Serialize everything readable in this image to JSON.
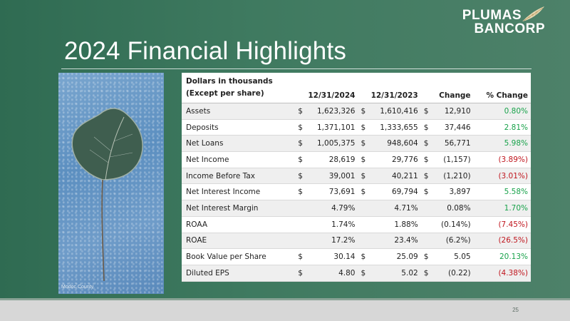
{
  "slide": {
    "title": "2024 Financial Highlights",
    "page_number": "25"
  },
  "logo": {
    "line1": "PLUMAS",
    "line2": "BANCORP"
  },
  "photo": {
    "caption": "Modoc County"
  },
  "colors": {
    "positive": "#18a24a",
    "negative": "#c0161e",
    "background": "#3f7a60"
  },
  "table": {
    "header": {
      "label_line1": "Dollars in thousands",
      "label_line2": "(Except per share)",
      "col1": "12/31/2024",
      "col2": "12/31/2023",
      "col3": "Change",
      "col4": "% Change"
    },
    "rows": [
      {
        "label": "Assets",
        "cur1": "$",
        "v2024": "1,623,326",
        "cur2": "$",
        "v2023": "1,610,416",
        "cur3": "$",
        "change": "12,910",
        "pct": "0.80%"
      },
      {
        "label": "Deposits",
        "cur1": "$",
        "v2024": "1,371,101",
        "cur2": "$",
        "v2023": "1,333,655",
        "cur3": "$",
        "change": "37,446",
        "pct": "2.81%"
      },
      {
        "label": "Net Loans",
        "cur1": "$",
        "v2024": "1,005,375",
        "cur2": "$",
        "v2023": "948,604",
        "cur3": "$",
        "change": "56,771",
        "pct": "5.98%"
      },
      {
        "label": "Net Income",
        "cur1": "$",
        "v2024": "28,619",
        "cur2": "$",
        "v2023": "29,776",
        "cur3": "$",
        "change": "(1,157)",
        "pct": "(3.89%)"
      },
      {
        "label": "Income Before Tax",
        "cur1": "$",
        "v2024": "39,001",
        "cur2": "$",
        "v2023": "40,211",
        "cur3": "$",
        "change": "(1,210)",
        "pct": "(3.01%)"
      },
      {
        "label": "Net Interest Income",
        "cur1": "$",
        "v2024": "73,691",
        "cur2": "$",
        "v2023": "69,794",
        "cur3": "$",
        "change": "3,897",
        "pct": "5.58%"
      },
      {
        "label": "Net Interest Margin",
        "cur1": "",
        "v2024": "4.79%",
        "cur2": "",
        "v2023": "4.71%",
        "cur3": "",
        "change": "0.08%",
        "pct": "1.70%"
      },
      {
        "label": "ROAA",
        "cur1": "",
        "v2024": "1.74%",
        "cur2": "",
        "v2023": "1.88%",
        "cur3": "",
        "change": "(0.14%)",
        "pct": "(7.45%)"
      },
      {
        "label": "ROAE",
        "cur1": "",
        "v2024": "17.2%",
        "cur2": "",
        "v2023": "23.4%",
        "cur3": "",
        "change": "(6.2%)",
        "pct": "(26.5%)"
      },
      {
        "label": "Book Value per Share",
        "cur1": "$",
        "v2024": "30.14",
        "cur2": "$",
        "v2023": "25.09",
        "cur3": "$",
        "change": "5.05",
        "pct": "20.13%"
      },
      {
        "label": "Diluted EPS",
        "cur1": "$",
        "v2024": "4.80",
        "cur2": "$",
        "v2023": "5.02",
        "cur3": "$",
        "change": "(0.22)",
        "pct": "(4.38%)"
      }
    ]
  }
}
